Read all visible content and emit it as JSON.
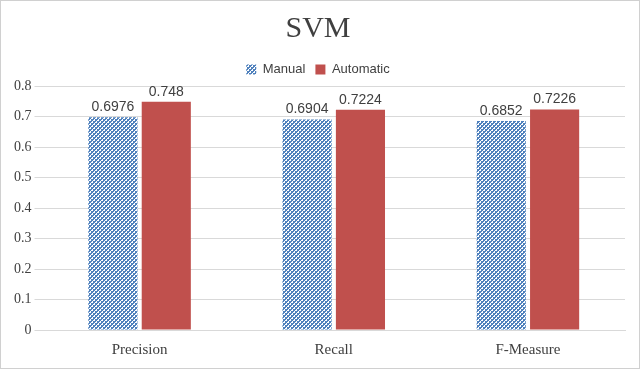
{
  "chart_data": {
    "type": "bar",
    "title": "SVM",
    "categories": [
      "Precision",
      "Recall",
      "F-Measure"
    ],
    "series": [
      {
        "name": "Manual",
        "color": "#4f81bd",
        "values": [
          0.6976,
          0.6904,
          0.6852
        ]
      },
      {
        "name": "Automatic",
        "color": "#c0504d",
        "values": [
          0.748,
          0.7224,
          0.7226
        ]
      }
    ],
    "ylim": [
      0,
      0.8
    ],
    "yticks": [
      0,
      0.1,
      0.2,
      0.3,
      0.4,
      0.5,
      0.6,
      0.7,
      0.8
    ],
    "grid": true,
    "legend": "top",
    "data_labels": true
  }
}
